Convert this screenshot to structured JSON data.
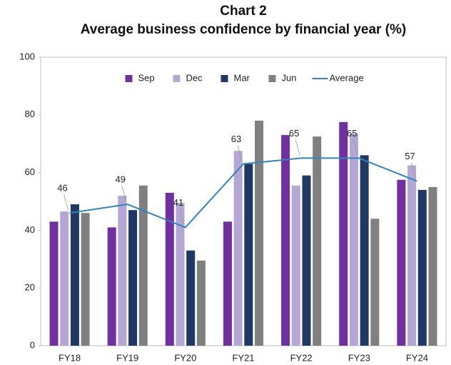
{
  "chart_data": {
    "type": "bar",
    "title": "Chart 2",
    "subtitle": "Average business confidence by financial year (%)",
    "categories": [
      "FY18",
      "FY19",
      "FY20",
      "FY21",
      "FY22",
      "FY23",
      "FY24"
    ],
    "series": [
      {
        "name": "Sep",
        "color": "#7030a0",
        "values": [
          43,
          41,
          53,
          43,
          73,
          77.5,
          57.5
        ]
      },
      {
        "name": "Dec",
        "color": "#b4a7d6",
        "values": [
          46.5,
          52,
          49.5,
          67.5,
          55.5,
          73.5,
          62.5
        ]
      },
      {
        "name": "Mar",
        "color": "#1f3864",
        "values": [
          49,
          47,
          33,
          63,
          59,
          66,
          54
        ]
      },
      {
        "name": "Jun",
        "color": "#808080",
        "values": [
          46,
          55.5,
          29.5,
          78,
          72.5,
          44,
          55
        ]
      },
      {
        "name": "Average",
        "type": "line",
        "color": "#2e86c1",
        "values": [
          46,
          49,
          41,
          63,
          65,
          65,
          57
        ],
        "data_labels": true
      }
    ],
    "ylim": [
      0,
      100
    ],
    "yticks": [
      0,
      20,
      40,
      60,
      80,
      100
    ],
    "grid": false,
    "legend": "top"
  }
}
